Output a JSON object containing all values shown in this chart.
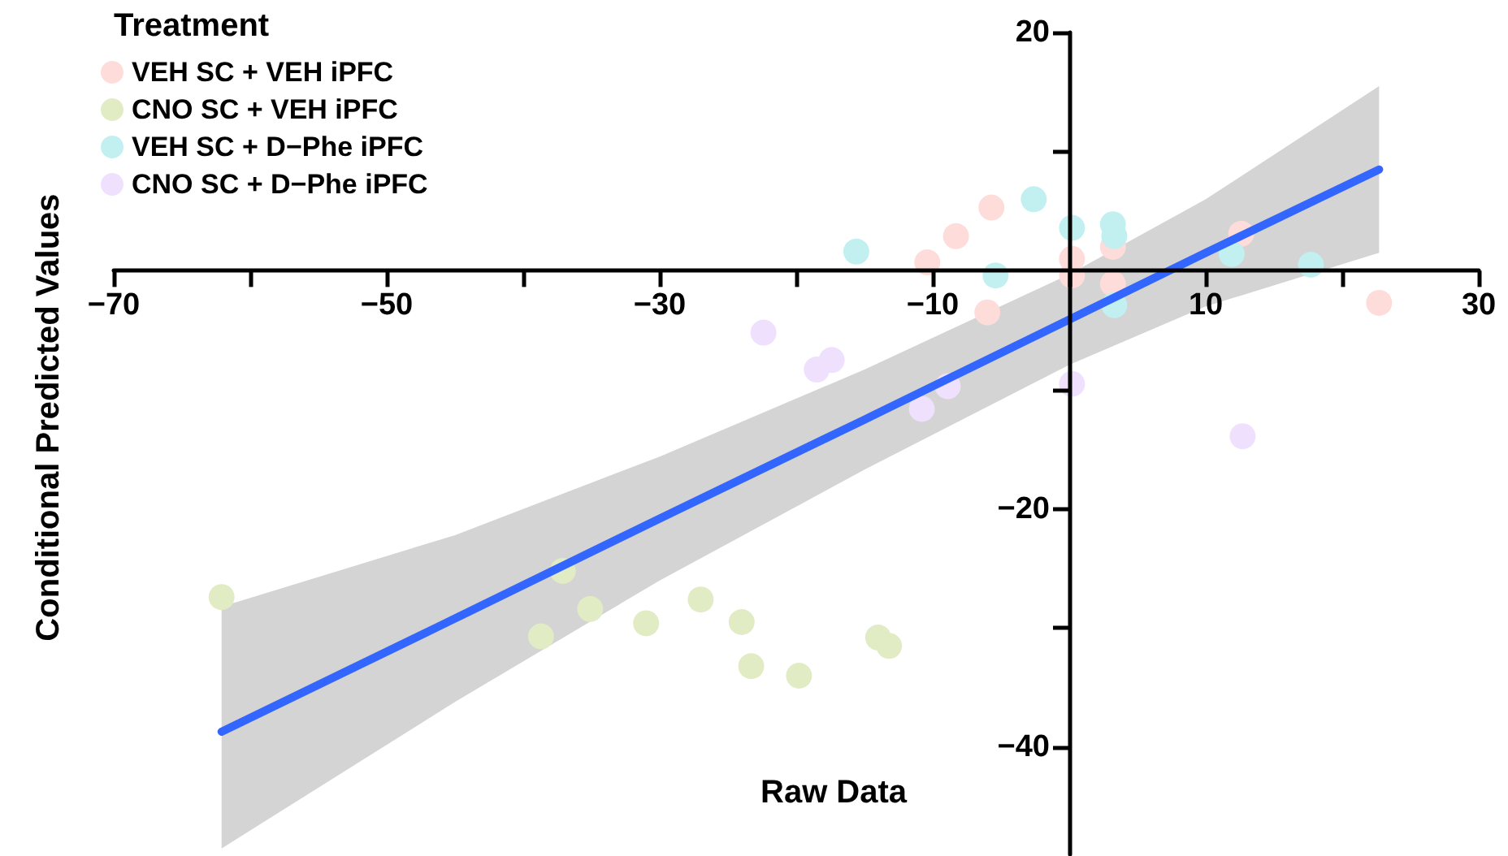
{
  "chart_data": {
    "type": "scatter",
    "xlabel": "Raw Data",
    "ylabel": "Conditional Predicted Values",
    "legend_title": "Treatment",
    "legend": "top left",
    "marker": "circle",
    "grid": false,
    "xlim": [
      -70,
      30
    ],
    "xticks": [
      -70,
      {
        "value": -60,
        "label": null
      },
      -50,
      {
        "value": -40,
        "label": null
      },
      -30,
      {
        "value": -20,
        "label": null
      },
      -10,
      {
        "value": 0,
        "label": null
      },
      10,
      {
        "value": 20,
        "label": null
      },
      30
    ],
    "ylim": [
      -49,
      20
    ],
    "yticks": [
      20,
      {
        "value": 10,
        "label": null
      },
      {
        "value": -10,
        "label": null
      },
      -20,
      {
        "value": -30,
        "label": null
      },
      -40
    ],
    "series": [
      {
        "name": "VEH SC + VEH iPFC",
        "color": "#fddcd9",
        "x": [
          -5.7,
          -8.3,
          -10.4,
          0.2,
          0.2,
          3.2,
          3.2,
          -6.0,
          12.6,
          22.7
        ],
        "values": [
          5.3,
          2.9,
          0.7,
          1.0,
          -0.4,
          2.0,
          -1.1,
          -3.5,
          3.1,
          -2.7
        ]
      },
      {
        "name": "CNO SC + VEH iPFC",
        "color": "#e1ebc4",
        "x": [
          -62.1,
          -37.1,
          -35.1,
          -38.7,
          -31.0,
          -27.0,
          -24.0,
          -23.3,
          -19.8,
          -14.0,
          -13.2
        ],
        "values": [
          -27.4,
          -25.2,
          -28.4,
          -30.7,
          -29.6,
          -27.6,
          -29.5,
          -33.2,
          -34.0,
          -30.8,
          -31.5
        ]
      },
      {
        "name": "VEH SC + D−Phe iPFC",
        "color": "#c2eff0",
        "x": [
          -15.6,
          -2.6,
          0.2,
          3.2,
          3.3,
          -5.4,
          3.3,
          11.9,
          17.7
        ],
        "values": [
          1.6,
          6.0,
          3.6,
          3.9,
          2.9,
          -0.4,
          -2.9,
          1.4,
          0.5
        ]
      },
      {
        "name": "CNO SC + D−Phe iPFC",
        "color": "#efe0fd",
        "x": [
          -22.4,
          -17.4,
          -18.5,
          -8.9,
          -10.8,
          0.2,
          12.7
        ],
        "values": [
          -5.2,
          -7.5,
          -8.3,
          -9.7,
          -11.6,
          -9.5,
          -13.9
        ]
      },
      {
        "type": "line",
        "marker": "none",
        "color": "#3366ff",
        "x": [
          -62.1,
          -45,
          -30,
          -15,
          0,
          10,
          22.7
        ],
        "values": [
          -38.7,
          -29.2,
          -20.8,
          -12.5,
          -4.1,
          1.5,
          8.5
        ],
        "lower": [
          -48.5,
          -36.2,
          -26.0,
          -16.7,
          -7.9,
          -3.0,
          1.5
        ],
        "upper": [
          -28.2,
          -22.2,
          -15.6,
          -8.3,
          -0.3,
          6.0,
          15.5
        ]
      }
    ]
  }
}
